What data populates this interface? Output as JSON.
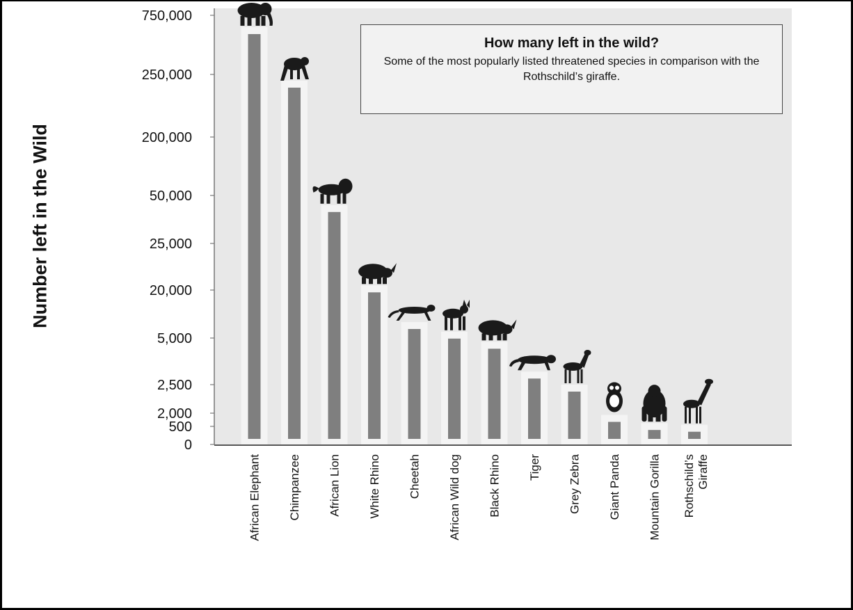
{
  "chart_data": {
    "type": "bar",
    "title": "How many left in the wild?",
    "subtitle": "Some of the most popularly listed threatened species in comparison with the Rothschild’s giraffe.",
    "ylabel": "Number left in the Wild",
    "xlabel": "",
    "y_scale": "non-linear (tick labels unevenly spaced)",
    "ticks": [
      "750,000",
      "250,000",
      "200,000",
      "50,000",
      "25,000",
      "20,000",
      "5,000",
      "2,500",
      "2,000",
      "500",
      "0"
    ],
    "categories": [
      "African Elephant",
      "Chimpanzee",
      "African Lion",
      "White Rhino",
      "Cheetah",
      "African Wild dog",
      "Black Rhino",
      "Tiger",
      "Grey Zebra",
      "Giant Panda",
      "Mountain Gorilla",
      "Rothschild’s Giraffe"
    ],
    "values": [
      650000,
      245000,
      45000,
      20500,
      10000,
      7000,
      4800,
      3200,
      2500,
      1800,
      880,
      680
    ],
    "icons": [
      "elephant-icon",
      "chimpanzee-icon",
      "lion-icon",
      "rhino-icon",
      "cheetah-icon",
      "wild-dog-icon",
      "rhino-icon",
      "tiger-icon",
      "zebra-icon",
      "panda-icon",
      "gorilla-icon",
      "giraffe-icon"
    ],
    "grid": false,
    "colors": {
      "plot_bg": "#e8e8e8",
      "bar_outer": "#f4f4f4",
      "bar_inner": "#7f7f7f",
      "silhouette": "#1a1a1a"
    }
  }
}
